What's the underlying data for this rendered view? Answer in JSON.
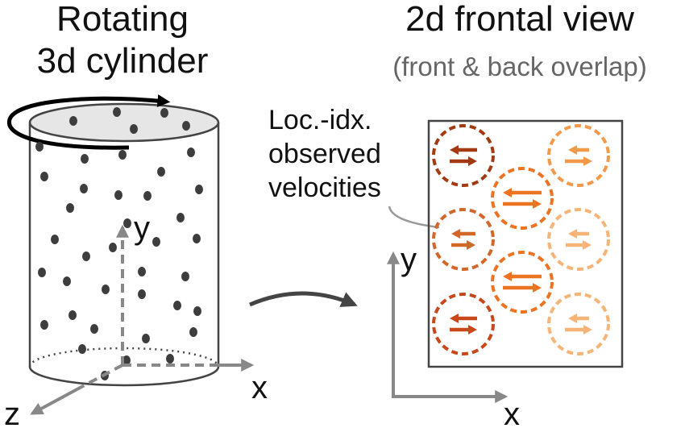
{
  "left_panel": {
    "title_line1": "Rotating",
    "title_line2": "3d cylinder",
    "axis_x": "x",
    "axis_y": "y",
    "axis_z": "z"
  },
  "right_panel": {
    "title": "2d frontal view",
    "subtitle": "(front & back overlap)",
    "callout_line1": "Loc.-idx.",
    "callout_line2": "observed",
    "callout_line3": "velocities",
    "axis_x": "x",
    "axis_y": "y"
  },
  "colors": {
    "text": "#111111",
    "subtitle": "#666666",
    "outline": "#444444",
    "dots": "#3d3d3d",
    "axis_gray": "#888888",
    "cylinder_top": "#e6e6e6",
    "vel_dark": "#a33a12",
    "vel_red": "#c8481c",
    "vel_mid": "#d2672a",
    "vel_orange": "#ec7321",
    "vel_light": "#f39a4a",
    "vel_pale": "#f7b477"
  },
  "icons": {
    "rotation": "curved-rotation-arrow-icon",
    "transform": "curved-transform-arrow-icon"
  }
}
